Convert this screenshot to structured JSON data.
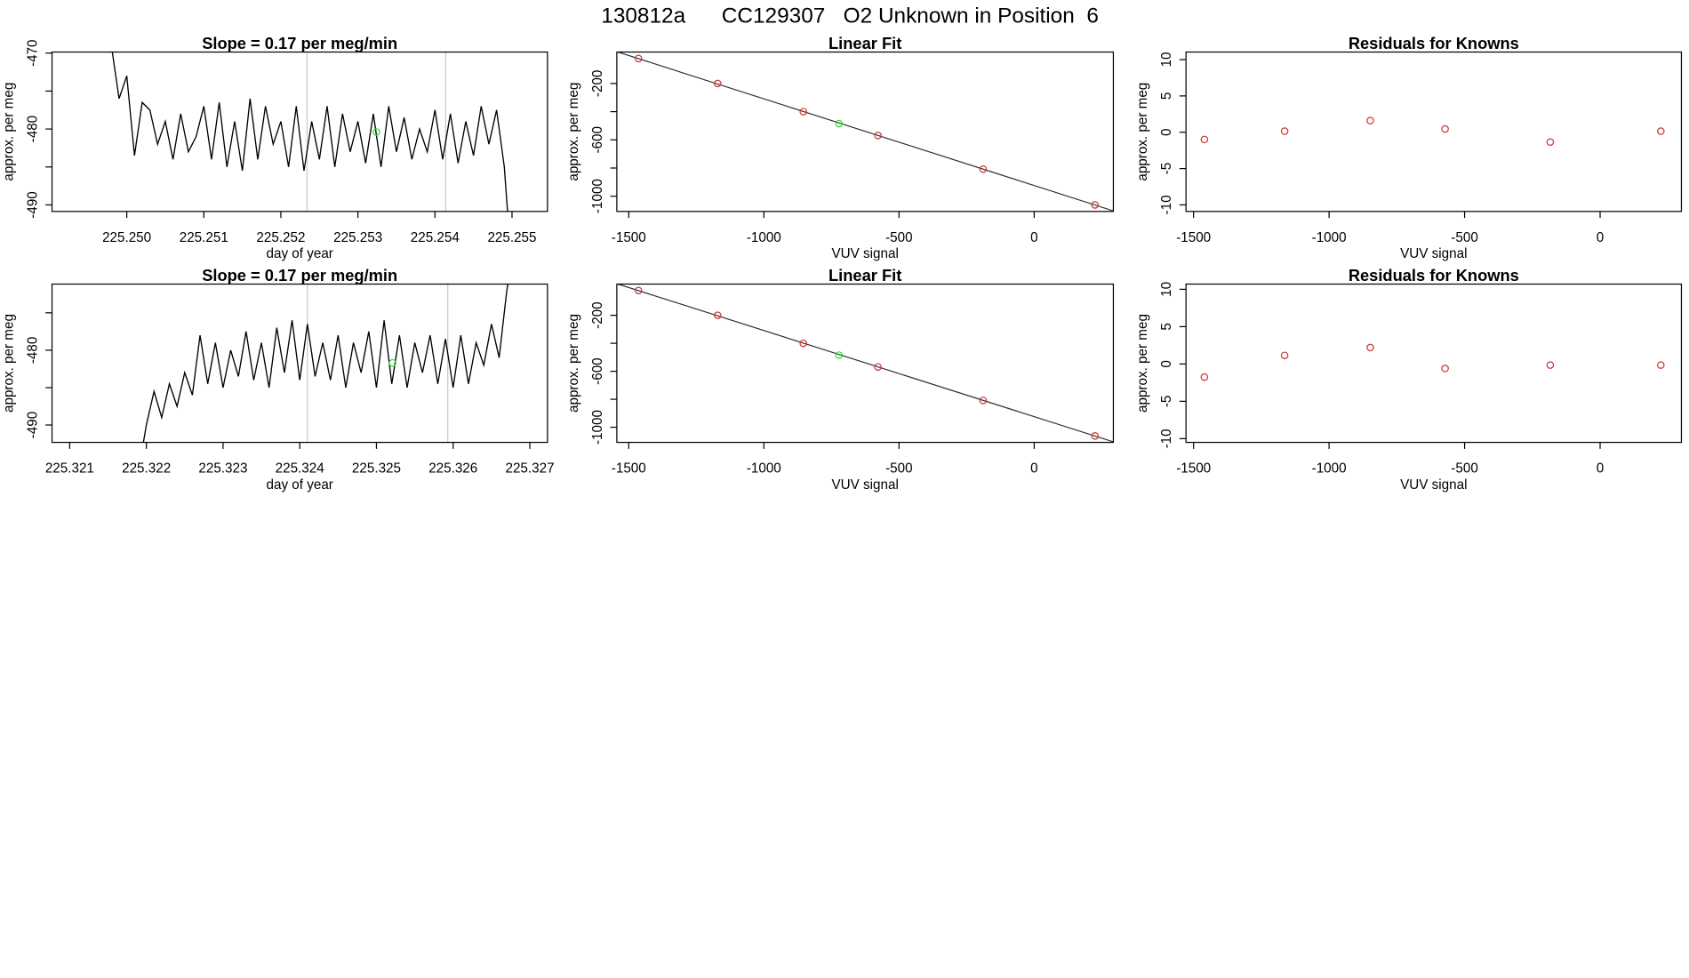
{
  "title": "130812a      CC129307   O2 Unknown in Position  6",
  "chart_data": [
    {
      "type": "line",
      "title": "Slope =  0.17  per meg/min",
      "x_label": "day of year",
      "y_label": "approx. per meg",
      "color": "#000000",
      "xlim": [
        225.24903,
        225.25546
      ],
      "ylim": [
        -490.86,
        -469.86
      ],
      "xticks": [
        {
          "value": 225.25,
          "label": "225.250"
        },
        225.251,
        225.252,
        225.253,
        225.254,
        225.255
      ],
      "yticks": [
        -470,
        -480,
        -490
      ],
      "minor_yticks": [
        -475,
        -485
      ],
      "vlines": [
        225.25234,
        225.25414
      ],
      "vline_color": "#c8c8c8",
      "highlight": {
        "x": 225.25324,
        "y": -480.4,
        "color": "#33dd33"
      },
      "x": [
        225.2498,
        225.2499,
        225.25,
        225.2501,
        225.2502,
        225.2503,
        225.2504,
        225.2505,
        225.2506,
        225.2507,
        225.2508,
        225.2509,
        225.251,
        225.2511,
        225.2512,
        225.2513,
        225.2514,
        225.2515,
        225.2516,
        225.2517,
        225.2518,
        225.2519,
        225.252,
        225.2521,
        225.2522,
        225.2523,
        225.2524,
        225.2525,
        225.2526,
        225.2527,
        225.2528,
        225.2529,
        225.253,
        225.2531,
        225.2532,
        225.2533,
        225.2534,
        225.2535,
        225.2536,
        225.2537,
        225.2538,
        225.2539,
        225.254,
        225.2541,
        225.2542,
        225.2543,
        225.2544,
        225.2545,
        225.2546,
        225.2547,
        225.2548,
        225.2549,
        225.25495
      ],
      "values": [
        -469,
        -476,
        -473,
        -483.5,
        -476.5,
        -477.5,
        -482,
        -479,
        -484,
        -478,
        -483,
        -481,
        -477,
        -484,
        -476.5,
        -485,
        -479,
        -485.5,
        -476,
        -484,
        -477,
        -482,
        -479,
        -485,
        -477,
        -485.5,
        -479,
        -484,
        -477,
        -485,
        -478,
        -483,
        -479,
        -484.5,
        -478,
        -485,
        -477,
        -483,
        -478.5,
        -484,
        -480,
        -483,
        -477.5,
        -484,
        -478,
        -484.5,
        -479,
        -483.5,
        -477,
        -482,
        -477.5,
        -485,
        -492
      ]
    },
    {
      "type": "scatter",
      "title": "Linear Fit",
      "x_label": "VUV signal",
      "y_label": "approx. per meg",
      "color": "#cc3333",
      "xlim": [
        -1544,
        293
      ],
      "ylim": [
        -1108,
        23
      ],
      "xticks": [
        -1500,
        -1000,
        -500,
        0
      ],
      "yticks": [
        -200,
        -600,
        -1000
      ],
      "minor_yticks": [
        -400,
        -800
      ],
      "fit": {
        "intercept": -924,
        "slope": -0.615
      },
      "highlight": {
        "x": -722,
        "y": -485,
        "color": "#33dd33"
      },
      "x": [
        -1464,
        -1171,
        -854,
        -578,
        -189,
        225
      ],
      "values": [
        -23,
        -200,
        -400,
        -569,
        -808,
        -1062
      ]
    },
    {
      "type": "scatter",
      "title": "Residuals for Knowns",
      "x_label": "VUV signal",
      "y_label": "approx. per meg",
      "color": "#cc3333",
      "xlim": [
        -1528,
        300
      ],
      "ylim": [
        -10.9,
        11.04
      ],
      "xticks": [
        -1500,
        -1000,
        -500,
        0
      ],
      "yticks": [
        10,
        5,
        0,
        -5,
        -10
      ],
      "x": [
        -1460,
        -1164,
        -848,
        -572,
        -184,
        224
      ],
      "values": [
        -1,
        0.15,
        1.6,
        0.45,
        -1.35,
        0.15
      ]
    },
    {
      "type": "line",
      "title": "Slope =  0.17  per meg/min",
      "x_label": "day of year",
      "y_label": "approx. per meg",
      "color": "#000000",
      "xlim": [
        225.32077,
        225.32723
      ],
      "ylim": [
        -492.32,
        -471.16
      ],
      "xticks": [
        225.321,
        225.322,
        225.323,
        225.324,
        225.325,
        225.326,
        225.327
      ],
      "yticks": [
        -480,
        -490
      ],
      "minor_yticks": [
        -475,
        -485
      ],
      "vlines": [
        225.3241,
        225.32593
      ],
      "vline_color": "#c8c8c8",
      "highlight": {
        "x": 225.32521,
        "y": -481.7,
        "color": "#33dd33"
      },
      "x": [
        225.32195,
        225.322,
        225.3221,
        225.3222,
        225.3223,
        225.3224,
        225.3225,
        225.3226,
        225.3227,
        225.3228,
        225.3229,
        225.323,
        225.3231,
        225.3232,
        225.3233,
        225.3234,
        225.3235,
        225.3236,
        225.3237,
        225.3238,
        225.3239,
        225.324,
        225.3241,
        225.3242,
        225.3243,
        225.3244,
        225.3245,
        225.3246,
        225.3247,
        225.3248,
        225.3249,
        225.325,
        225.3251,
        225.3252,
        225.3253,
        225.3254,
        225.3255,
        225.3256,
        225.3257,
        225.3258,
        225.3259,
        225.326,
        225.3261,
        225.3262,
        225.3263,
        225.3264,
        225.3265,
        225.3266,
        225.3267,
        225.32675
      ],
      "values": [
        -493,
        -490,
        -485.5,
        -489,
        -484.5,
        -487.5,
        -483,
        -486,
        -478,
        -484.5,
        -479,
        -485,
        -480,
        -483.5,
        -477.5,
        -484,
        -479,
        -485,
        -477,
        -483,
        -476,
        -484,
        -476.5,
        -483.5,
        -479,
        -484,
        -478,
        -485,
        -479,
        -483,
        -477.5,
        -485,
        -476,
        -484.5,
        -478,
        -485,
        -479,
        -483,
        -478,
        -484.5,
        -478.5,
        -485,
        -478,
        -484.5,
        -479,
        -482,
        -476.5,
        -481,
        -472,
        -469
      ]
    },
    {
      "type": "scatter",
      "title": "Linear Fit",
      "x_label": "VUV signal",
      "y_label": "approx. per meg",
      "color": "#cc3333",
      "xlim": [
        -1544,
        293
      ],
      "ylim": [
        -1108,
        23
      ],
      "xticks": [
        -1500,
        -1000,
        -500,
        0
      ],
      "yticks": [
        -200,
        -600,
        -1000
      ],
      "minor_yticks": [
        -400,
        -800
      ],
      "fit": {
        "intercept": -924,
        "slope": -0.615
      },
      "highlight": {
        "x": -722,
        "y": -485,
        "color": "#33dd33"
      },
      "x": [
        -1464,
        -1171,
        -854,
        -578,
        -189,
        225
      ],
      "values": [
        -23,
        -200,
        -400,
        -569,
        -808,
        -1062
      ]
    },
    {
      "type": "scatter",
      "title": "Residuals for Knowns",
      "x_label": "VUV signal",
      "y_label": "approx. per meg",
      "color": "#cc3333",
      "xlim": [
        -1528,
        300
      ],
      "ylim": [
        -10.5,
        10.7
      ],
      "xticks": [
        -1500,
        -1000,
        -500,
        0
      ],
      "yticks": [
        10,
        5,
        0,
        -5,
        -10
      ],
      "x": [
        -1460,
        -1164,
        -848,
        -572,
        -184,
        224
      ],
      "values": [
        -1.75,
        1.15,
        2.2,
        -0.6,
        -0.15,
        -0.15
      ]
    }
  ]
}
